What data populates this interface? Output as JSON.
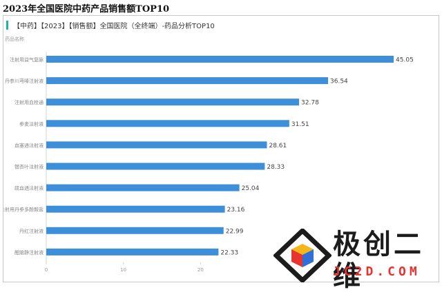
{
  "page_title": "2023年全国医院中药产品销售额TOP10",
  "chart_title": "【中药】【2023】【销售额】全国医院（全终端）-药品分析TOP10",
  "category_axis_label": "药品名称",
  "colors": {
    "bar": "#3d8fd9",
    "accent": "#1fb3a5",
    "watermark_red": "#e8332f"
  },
  "watermark": {
    "main": "极创二维",
    "sub": "JC2D.COM"
  },
  "chart_data": {
    "type": "bar",
    "orientation": "horizontal",
    "title": "【中药】【2023】【销售额】全国医院（全终端）-药品分析TOP10",
    "ylabel": "药品名称",
    "xlabel": "",
    "categories": [
      "注射用益气复脉",
      "丹参川芎嗪注射液",
      "注射用血栓通",
      "参麦注射液",
      "血塞通注射液",
      "银杏叶注射液",
      "疏血通注射液",
      "注射用丹参多酚酸盐",
      "丹红注射液",
      "醒脑静注射液"
    ],
    "values": [
      45.05,
      36.54,
      32.78,
      31.51,
      28.61,
      28.33,
      25.04,
      23.16,
      22.99,
      22.33
    ],
    "value_labels": [
      "45.05",
      "36.54",
      "32.78",
      "31.51",
      "28.61",
      "28.33",
      "25.04",
      "23.16",
      "22.99",
      "22.33"
    ],
    "xlim": [
      0,
      48
    ],
    "xticks": [
      0,
      10,
      20
    ],
    "xtick_labels": [
      "0",
      "10",
      "20"
    ],
    "grid": false
  }
}
